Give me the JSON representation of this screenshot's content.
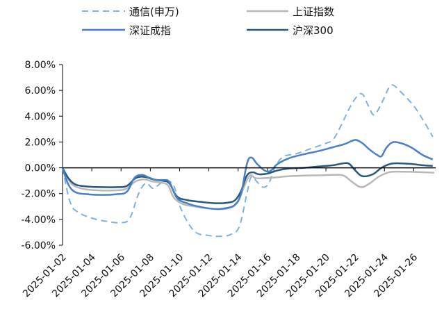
{
  "chart_data": {
    "type": "line",
    "title": "",
    "xlabel": "",
    "ylabel": "",
    "ylim": [
      -6,
      8
    ],
    "y_ticks": [
      -6,
      -4,
      -2,
      0,
      2,
      4,
      6,
      8
    ],
    "y_tick_labels": [
      "-6.00%",
      "-4.00%",
      "-2.00%",
      "0.00%",
      "2.00%",
      "4.00%",
      "6.00%",
      "8.00%"
    ],
    "x_tick_labels": [
      "2025-01-02",
      "2025-01-04",
      "2025-01-06",
      "2025-01-08",
      "2025-01-10",
      "2025-01-12",
      "2025-01-14",
      "2025-01-16",
      "2025-01-18",
      "2025-01-20",
      "2025-01-22",
      "2025-01-24",
      "2025-01-26"
    ],
    "x_ticks": [
      0,
      2,
      4,
      6,
      8,
      10,
      12,
      14,
      16,
      18,
      20,
      22,
      24
    ],
    "xlim": [
      0,
      25.5
    ],
    "grid": false,
    "legend_position": "top",
    "series": [
      {
        "name": "通信(申万)",
        "color": "#7fb0e0",
        "dash": "dashed",
        "width": 2,
        "points": [
          [
            0,
            0
          ],
          [
            0.5,
            -2.6
          ],
          [
            1,
            -3.4
          ],
          [
            2,
            -3.9
          ],
          [
            3,
            -4.15
          ],
          [
            4,
            -4.25
          ],
          [
            4.6,
            -3.9
          ],
          [
            5.2,
            -2.0
          ],
          [
            5.7,
            -1.2
          ],
          [
            6.2,
            -1.6
          ],
          [
            6.7,
            -1.2
          ],
          [
            7.1,
            -1.0
          ],
          [
            7.6,
            -1.4
          ],
          [
            8.1,
            -3.2
          ],
          [
            9,
            -4.9
          ],
          [
            10,
            -5.25
          ],
          [
            11,
            -5.3
          ],
          [
            11.6,
            -5.1
          ],
          [
            12.1,
            -4.5
          ],
          [
            12.6,
            -2.0
          ],
          [
            12.9,
            -0.7
          ],
          [
            13.3,
            -1.1
          ],
          [
            13.7,
            -1.5
          ],
          [
            14.1,
            -1.2
          ],
          [
            14.5,
            0
          ],
          [
            15,
            0.8
          ],
          [
            15.5,
            1.0
          ],
          [
            16,
            1.1
          ],
          [
            17,
            1.5
          ],
          [
            18,
            1.9
          ],
          [
            18.5,
            2.2
          ],
          [
            19,
            3.2
          ],
          [
            19.6,
            4.6
          ],
          [
            20.1,
            5.5
          ],
          [
            20.5,
            5.7
          ],
          [
            20.9,
            4.8
          ],
          [
            21.3,
            4.1
          ],
          [
            21.8,
            5.0
          ],
          [
            22.3,
            6.2
          ],
          [
            22.6,
            6.4
          ],
          [
            23.1,
            5.9
          ],
          [
            24,
            4.8
          ],
          [
            24.8,
            3.4
          ],
          [
            25.3,
            2.4
          ]
        ]
      },
      {
        "name": "上证指数",
        "color": "#b8b8b8",
        "dash": "solid",
        "width": 2.5,
        "points": [
          [
            0,
            0
          ],
          [
            0.4,
            -0.9
          ],
          [
            0.8,
            -1.4
          ],
          [
            1.5,
            -1.65
          ],
          [
            2.5,
            -1.75
          ],
          [
            3.5,
            -1.75
          ],
          [
            4.3,
            -1.65
          ],
          [
            5,
            -1.05
          ],
          [
            5.6,
            -0.9
          ],
          [
            6.1,
            -1.05
          ],
          [
            6.7,
            -1.15
          ],
          [
            7.2,
            -1.35
          ],
          [
            7.6,
            -2.3
          ],
          [
            8.2,
            -2.8
          ],
          [
            9,
            -3.0
          ],
          [
            10,
            -3.15
          ],
          [
            11,
            -3.2
          ],
          [
            11.6,
            -3.0
          ],
          [
            12,
            -2.6
          ],
          [
            12.4,
            -1.5
          ],
          [
            12.8,
            -0.6
          ],
          [
            13.2,
            -0.8
          ],
          [
            13.8,
            -0.8
          ],
          [
            14.5,
            -0.75
          ],
          [
            15.5,
            -0.65
          ],
          [
            16.5,
            -0.6
          ],
          [
            17.5,
            -0.58
          ],
          [
            18.5,
            -0.55
          ],
          [
            19.2,
            -0.6
          ],
          [
            19.8,
            -1.1
          ],
          [
            20.4,
            -1.5
          ],
          [
            21,
            -1.2
          ],
          [
            21.6,
            -0.7
          ],
          [
            22.3,
            -0.35
          ],
          [
            23,
            -0.3
          ],
          [
            24,
            -0.32
          ],
          [
            25,
            -0.36
          ],
          [
            25.4,
            -0.38
          ]
        ]
      },
      {
        "name": "深证成指",
        "color": "#4a7fc6",
        "dash": "solid",
        "width": 2.5,
        "points": [
          [
            0,
            0
          ],
          [
            0.4,
            -1.3
          ],
          [
            0.9,
            -1.9
          ],
          [
            1.7,
            -2.05
          ],
          [
            2.7,
            -2.1
          ],
          [
            3.7,
            -2.05
          ],
          [
            4.4,
            -1.85
          ],
          [
            4.9,
            -0.8
          ],
          [
            5.4,
            -0.55
          ],
          [
            5.9,
            -0.75
          ],
          [
            6.4,
            -0.95
          ],
          [
            6.9,
            -0.95
          ],
          [
            7.3,
            -1.1
          ],
          [
            7.8,
            -2.3
          ],
          [
            8.5,
            -2.75
          ],
          [
            9.5,
            -3.05
          ],
          [
            10.5,
            -3.2
          ],
          [
            11.3,
            -3.1
          ],
          [
            11.8,
            -2.85
          ],
          [
            12.2,
            -2.0
          ],
          [
            12.6,
            0.3
          ],
          [
            12.9,
            0.8
          ],
          [
            13.3,
            0.3
          ],
          [
            13.8,
            -0.2
          ],
          [
            14.2,
            -0.25
          ],
          [
            14.7,
            0.3
          ],
          [
            15.5,
            0.75
          ],
          [
            16.5,
            1.05
          ],
          [
            17.5,
            1.3
          ],
          [
            18.5,
            1.6
          ],
          [
            19.3,
            1.85
          ],
          [
            19.8,
            2.1
          ],
          [
            20.1,
            2.15
          ],
          [
            20.5,
            1.9
          ],
          [
            21,
            1.4
          ],
          [
            21.5,
            1.0
          ],
          [
            21.8,
            0.9
          ],
          [
            22.1,
            1.5
          ],
          [
            22.5,
            1.95
          ],
          [
            23,
            1.95
          ],
          [
            23.8,
            1.6
          ],
          [
            24.6,
            1.0
          ],
          [
            25.3,
            0.65
          ]
        ]
      },
      {
        "name": "沪深300",
        "color": "#27587f",
        "dash": "solid",
        "width": 2.5,
        "points": [
          [
            0,
            0
          ],
          [
            0.4,
            -0.8
          ],
          [
            0.9,
            -1.3
          ],
          [
            1.7,
            -1.45
          ],
          [
            2.7,
            -1.5
          ],
          [
            3.7,
            -1.5
          ],
          [
            4.4,
            -1.4
          ],
          [
            5,
            -0.8
          ],
          [
            5.6,
            -0.7
          ],
          [
            6.2,
            -0.9
          ],
          [
            6.8,
            -1.0
          ],
          [
            7.3,
            -1.2
          ],
          [
            7.8,
            -2.2
          ],
          [
            8.5,
            -2.5
          ],
          [
            9.5,
            -2.65
          ],
          [
            10.5,
            -2.75
          ],
          [
            11.3,
            -2.7
          ],
          [
            11.8,
            -2.5
          ],
          [
            12.2,
            -1.8
          ],
          [
            12.6,
            -0.6
          ],
          [
            13,
            -0.35
          ],
          [
            13.4,
            -0.5
          ],
          [
            14,
            -0.45
          ],
          [
            14.7,
            -0.2
          ],
          [
            15.5,
            -0.05
          ],
          [
            16.5,
            0
          ],
          [
            17.5,
            0.1
          ],
          [
            18.5,
            0.2
          ],
          [
            19.2,
            0.35
          ],
          [
            19.6,
            0.3
          ],
          [
            20,
            -0.2
          ],
          [
            20.5,
            -0.65
          ],
          [
            21.2,
            -0.5
          ],
          [
            21.8,
            0
          ],
          [
            22.4,
            0.3
          ],
          [
            23,
            0.35
          ],
          [
            23.8,
            0.3
          ],
          [
            24.6,
            0.2
          ],
          [
            25.3,
            0.15
          ]
        ]
      }
    ]
  }
}
